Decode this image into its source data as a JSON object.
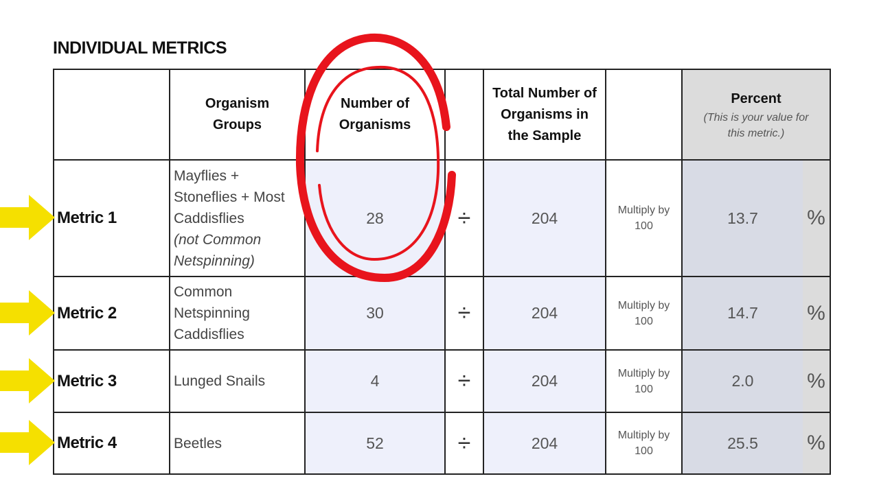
{
  "title": "INDIVIDUAL METRICS",
  "headers": {
    "metric": "",
    "groups": "Organism Groups",
    "number": "Number of Organisms",
    "divide": "",
    "total": "Total Number of Organisms in the Sample",
    "multiply": "",
    "percent": "Percent",
    "percent_note": "(This is your value for this metric.)"
  },
  "rows": [
    {
      "metric": "Metric 1",
      "group": "Mayflies + Stoneflies + Most Caddisflies",
      "group_note": "(not Common Netspinning)",
      "number": "28",
      "divide": "÷",
      "total": "204",
      "multiply": "Multiply by 100",
      "percent": "13.7",
      "unit": "%"
    },
    {
      "metric": "Metric 2",
      "group": "Common Netspinning Caddisflies",
      "group_note": "",
      "number": "30",
      "divide": "÷",
      "total": "204",
      "multiply": "Multiply by 100",
      "percent": "14.7",
      "unit": "%"
    },
    {
      "metric": "Metric 3",
      "group": "Lunged Snails",
      "group_note": "",
      "number": "4",
      "divide": "÷",
      "total": "204",
      "multiply": "Multiply by 100",
      "percent": "2.0",
      "unit": "%"
    },
    {
      "metric": "Metric 4",
      "group": "Beetles",
      "group_note": "",
      "number": "52",
      "divide": "÷",
      "total": "204",
      "multiply": "Multiply by 100",
      "percent": "25.5",
      "unit": "%"
    }
  ],
  "annotations": {
    "arrow_color": "#f5e000",
    "circle_color": "#e8141c",
    "circled_column": "Number of Organisms"
  }
}
